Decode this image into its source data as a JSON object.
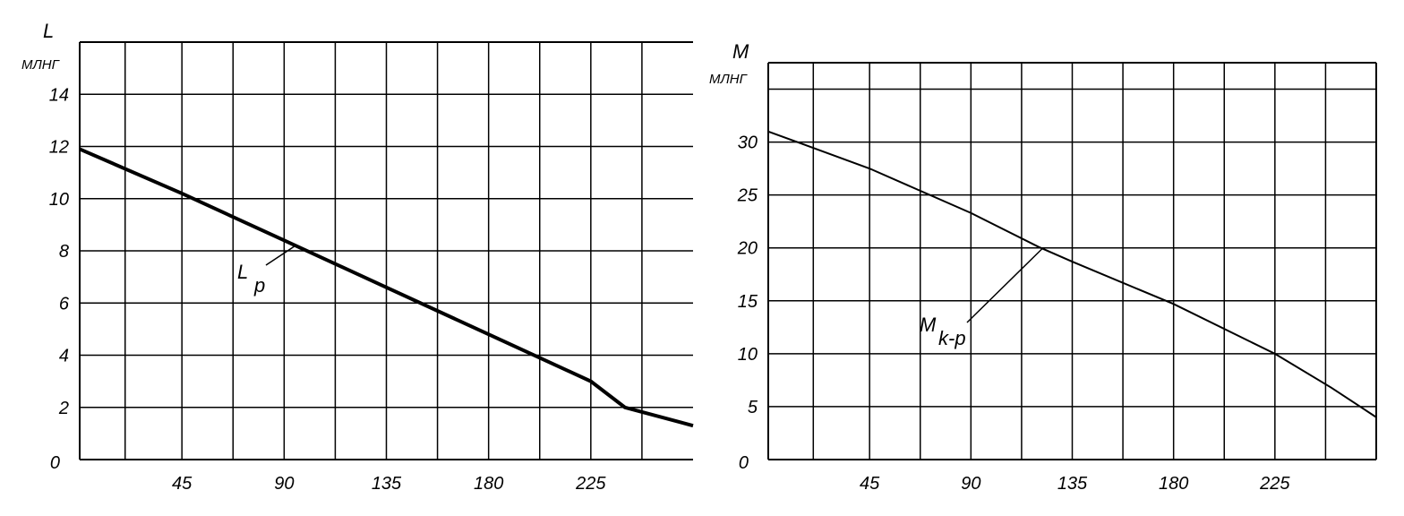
{
  "chart_data": [
    {
      "type": "line",
      "title": "",
      "ylabel": "L",
      "yunit": "МЛНГ",
      "xlabel": "",
      "xlim": [
        0,
        270
      ],
      "ylim": [
        0,
        16
      ],
      "x_ticks": [
        "45",
        "90",
        "135",
        "180",
        "225"
      ],
      "y_ticks": [
        "0",
        "2",
        "4",
        "6",
        "8",
        "10",
        "12",
        "14"
      ],
      "grid": true,
      "series": [
        {
          "label_main": "L",
          "label_sub": "p",
          "x": [
            0,
            45,
            90,
            135,
            180,
            225,
            240,
            270
          ],
          "y": [
            11.9,
            10.2,
            8.4,
            6.6,
            4.8,
            3.0,
            2.0,
            1.3
          ]
        }
      ]
    },
    {
      "type": "line",
      "title": "",
      "ylabel": "M",
      "yunit": "МЛНГ",
      "xlabel": "",
      "xlim": [
        0,
        270
      ],
      "ylim": [
        0,
        37.5
      ],
      "x_ticks": [
        "45",
        "90",
        "135",
        "180",
        "225"
      ],
      "y_ticks": [
        "0",
        "5",
        "10",
        "15",
        "20",
        "25",
        "30"
      ],
      "grid": true,
      "series": [
        {
          "label_main": "M",
          "label_sub": "k-p",
          "x": [
            0,
            45,
            90,
            120,
            135,
            180,
            225,
            250,
            270
          ],
          "y": [
            31.0,
            27.5,
            23.3,
            20.1,
            18.7,
            14.7,
            10.0,
            6.8,
            4.0
          ]
        }
      ]
    }
  ]
}
